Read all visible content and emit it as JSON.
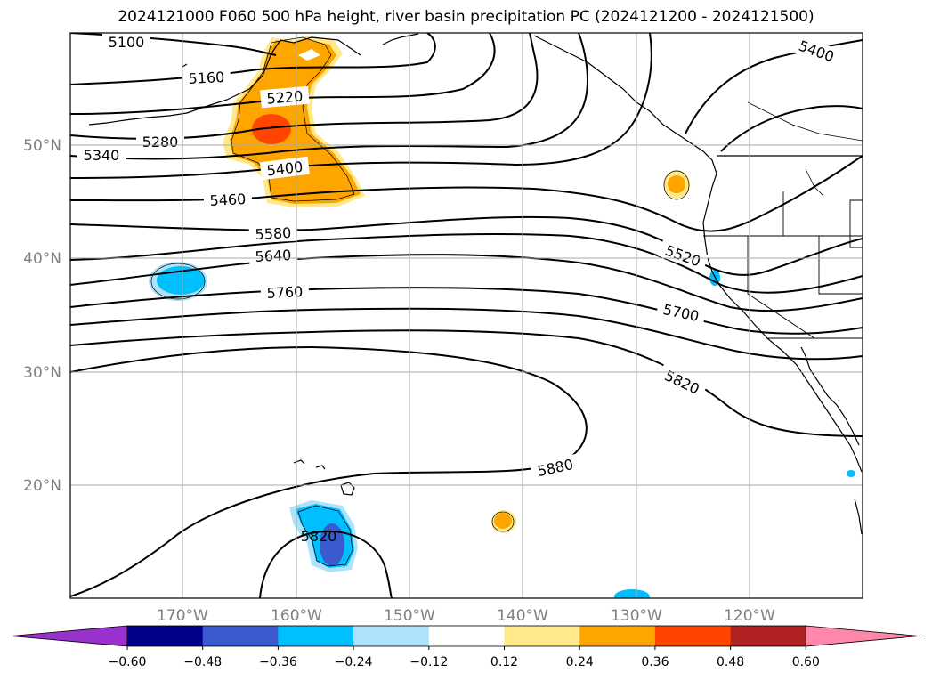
{
  "title": "2024121000 F060 500 hPa height, river basin precipitation PC (2024121200 - 2024121500)",
  "map": {
    "lat_labels": [
      "50°N",
      "40°N",
      "30°N",
      "20°N"
    ],
    "lon_labels": [
      "170°W",
      "160°W",
      "150°W",
      "140°W",
      "130°W",
      "120°W"
    ],
    "contour_labels": [
      "5100",
      "5160",
      "5220",
      "5280",
      "5340",
      "5400",
      "5460",
      "5580",
      "5640",
      "5760",
      "5400",
      "5520",
      "5700",
      "5820",
      "5880",
      "5820"
    ]
  },
  "colorbar": {
    "colors": [
      "#9932CC",
      "#00008B",
      "#3A5BCF",
      "#00BFFF",
      "#ADE2FA",
      "#FFFFFF",
      "#FFE98A",
      "#FFA500",
      "#FF4500",
      "#B22222",
      "#FF88AA"
    ],
    "tick_labels": [
      "−0.60",
      "−0.48",
      "−0.36",
      "−0.24",
      "−0.12",
      "0.12",
      "0.24",
      "0.36",
      "0.48",
      "0.60"
    ]
  }
}
